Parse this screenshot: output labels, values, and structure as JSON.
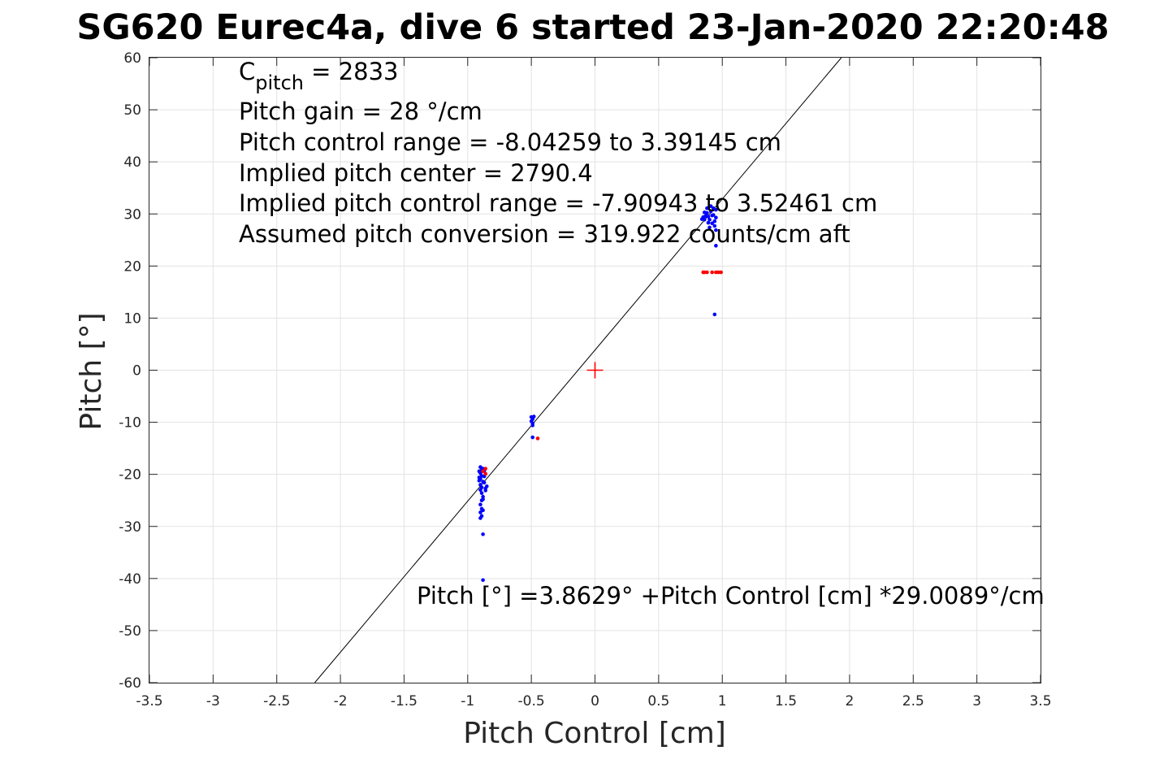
{
  "chart_data": {
    "type": "scatter",
    "title": "SG620 Eurec4a, dive 6 started 23-Jan-2020 22:20:48",
    "xlabel": "Pitch Control [cm]",
    "ylabel": "Pitch [°]",
    "xlim": [
      -3.5,
      3.5
    ],
    "ylim": [
      -60,
      60
    ],
    "x_ticks": [
      -3.5,
      -3,
      -2.5,
      -2,
      -1.5,
      -1,
      -0.5,
      0,
      0.5,
      1,
      1.5,
      2,
      2.5,
      3,
      3.5
    ],
    "x_tick_labels": [
      "-3.5",
      "-3",
      "-2.5",
      "-2",
      "-1.5",
      "-1",
      "-0.5",
      "0",
      "0.5",
      "1",
      "1.5",
      "2",
      "2.5",
      "3",
      "3.5"
    ],
    "y_ticks": [
      -60,
      -50,
      -40,
      -30,
      -20,
      -10,
      0,
      10,
      20,
      30,
      40,
      50,
      60
    ],
    "y_tick_labels": [
      "-60",
      "-50",
      "-40",
      "-30",
      "-20",
      "-10",
      "0",
      "10",
      "20",
      "30",
      "40",
      "50",
      "60"
    ],
    "grid": true,
    "annotations": {
      "c_pitch_prefix": "C",
      "c_pitch_sub": "pitch",
      "c_pitch_value": " = 2833",
      "lines": [
        "Pitch gain = 28 °/cm",
        "Pitch control range = -8.04259 to 3.39145 cm",
        "Implied pitch center = 2790.4",
        "Implied pitch control range = -7.90943 to 3.52461 cm",
        "Assumed pitch conversion = 319.922 counts/cm aft"
      ],
      "fit_equation": "Pitch [°] =3.8629° +Pitch Control [cm] *29.0089°/cm"
    },
    "fit_line": {
      "intercept": 3.8629,
      "slope": 29.0089,
      "color": "#000000"
    },
    "center_marker": {
      "x": 0,
      "y": 0,
      "color": "#ff0000"
    },
    "series": [
      {
        "name": "blue",
        "color": "#0000ff",
        "points": [
          [
            -0.9,
            -18.6
          ],
          [
            -0.89,
            -19.2
          ],
          [
            -0.9,
            -19.8
          ],
          [
            -0.89,
            -20.3
          ],
          [
            -0.9,
            -20.9
          ],
          [
            -0.88,
            -21.4
          ],
          [
            -0.9,
            -22.0
          ],
          [
            -0.89,
            -22.5
          ],
          [
            -0.9,
            -23.0
          ],
          [
            -0.89,
            -23.6
          ],
          [
            -0.88,
            -24.3
          ],
          [
            -0.89,
            -25.0
          ],
          [
            -0.9,
            -25.8
          ],
          [
            -0.89,
            -26.6
          ],
          [
            -0.9,
            -27.3
          ],
          [
            -0.89,
            -28.0
          ],
          [
            -0.9,
            -28.4
          ],
          [
            -0.88,
            -26.9
          ],
          [
            -0.87,
            -20.4
          ],
          [
            -0.87,
            -21.6
          ],
          [
            -0.86,
            -22.7
          ],
          [
            -0.85,
            -22.3
          ],
          [
            -0.86,
            -23.1
          ],
          [
            -0.87,
            -19.3
          ],
          [
            -0.88,
            -18.9
          ],
          [
            -0.86,
            -19.9
          ],
          [
            -0.91,
            -19.4
          ],
          [
            -0.91,
            -20.6
          ],
          [
            -0.91,
            -21.2
          ],
          [
            -0.88,
            -24.8
          ],
          [
            -0.88,
            -31.5
          ],
          [
            -0.88,
            -40.3
          ],
          [
            -0.5,
            -9.0
          ],
          [
            -0.49,
            -9.4
          ],
          [
            -0.5,
            -9.8
          ],
          [
            -0.49,
            -10.2
          ],
          [
            -0.48,
            -8.9
          ],
          [
            -0.49,
            -10.6
          ],
          [
            -0.49,
            -12.9
          ],
          [
            0.84,
            29.0
          ],
          [
            0.85,
            29.4
          ],
          [
            0.86,
            28.9
          ],
          [
            0.87,
            29.6
          ],
          [
            0.88,
            30.2
          ],
          [
            0.89,
            29.5
          ],
          [
            0.9,
            28.9
          ],
          [
            0.91,
            30.5
          ],
          [
            0.92,
            29.7
          ],
          [
            0.93,
            31.1
          ],
          [
            0.94,
            28.6
          ],
          [
            0.95,
            29.3
          ],
          [
            0.88,
            31.1
          ],
          [
            0.9,
            27.4
          ],
          [
            0.92,
            28.2
          ],
          [
            0.94,
            27.7
          ],
          [
            0.95,
            26.9
          ],
          [
            0.95,
            30.8
          ],
          [
            0.86,
            30.3
          ],
          [
            0.89,
            28.3
          ],
          [
            0.91,
            31.5
          ],
          [
            0.93,
            29.8
          ],
          [
            0.95,
            23.9
          ],
          [
            0.94,
            10.7
          ]
        ]
      },
      {
        "name": "red",
        "color": "#ff0000",
        "points": [
          [
            -0.86,
            -18.9
          ],
          [
            -0.88,
            -19.4
          ],
          [
            -0.86,
            -19.9
          ],
          [
            -0.45,
            -13.1
          ],
          [
            0.85,
            18.8
          ],
          [
            0.86,
            18.8
          ],
          [
            0.88,
            18.8
          ],
          [
            0.92,
            18.8
          ],
          [
            0.95,
            18.8
          ],
          [
            0.97,
            18.8
          ],
          [
            0.99,
            18.8
          ]
        ]
      }
    ]
  }
}
